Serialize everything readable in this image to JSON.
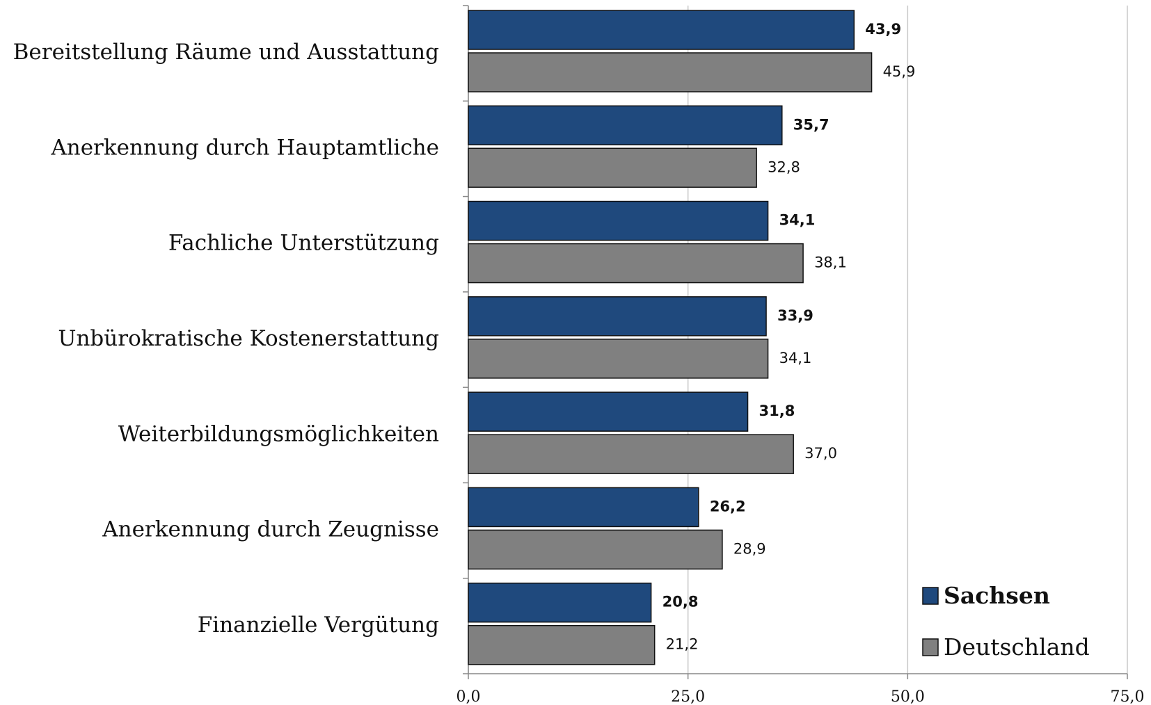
{
  "chart_data": {
    "type": "barh",
    "categories": [
      "Bereitstellung Räume und Ausstattung",
      "Anerkennung durch Hauptamtliche",
      "Fachliche Unterstützung",
      "Unbürokratische Kostenerstattung",
      "Weiterbildungsmöglichkeiten",
      "Anerkennung durch Zeugnisse",
      "Finanzielle Vergütung"
    ],
    "series": [
      {
        "name": "Sachsen",
        "color": "#1f497d",
        "values": [
          43.9,
          35.7,
          34.1,
          33.9,
          31.8,
          26.2,
          20.8
        ],
        "value_labels": [
          "43,9",
          "35,7",
          "34,1",
          "33,9",
          "31,8",
          "26,2",
          "20,8"
        ]
      },
      {
        "name": "Deutschland",
        "color": "#808080",
        "values": [
          45.9,
          32.8,
          38.1,
          34.1,
          37.0,
          28.9,
          21.2
        ],
        "value_labels": [
          "45,9",
          "32,8",
          "38,1",
          "34,1",
          "37,0",
          "28,9",
          "21,2"
        ]
      }
    ],
    "xlim": [
      0,
      75
    ],
    "xticks": [
      {
        "value": 0,
        "label": "0,0"
      },
      {
        "value": 25,
        "label": "25,0"
      },
      {
        "value": 50,
        "label": "50,0"
      },
      {
        "value": 75,
        "label": "75,0"
      }
    ],
    "grid": true,
    "legend": "lower right"
  }
}
